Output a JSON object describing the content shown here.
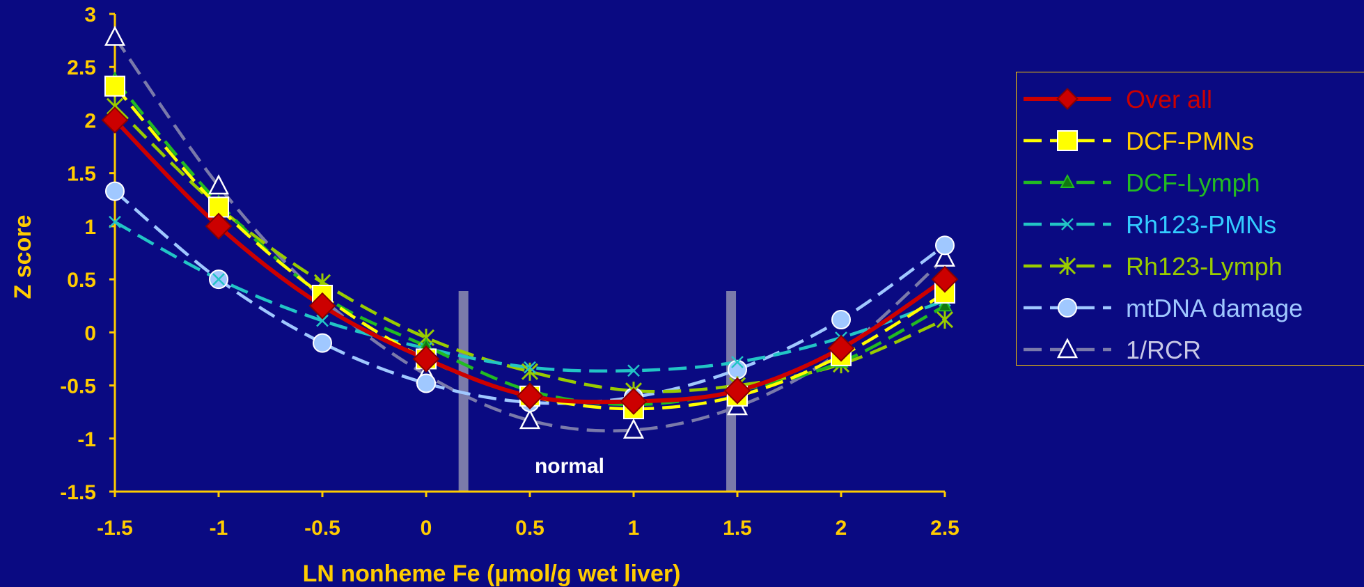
{
  "chart_data": {
    "type": "line",
    "xlabel": "LN nonheme Fe (µmol/g wet liver)",
    "ylabel": "Z score",
    "xlim": [
      -1.5,
      2.5
    ],
    "ylim": [
      -1.5,
      3
    ],
    "x_ticks": [
      "-1.5",
      "-1",
      "-0.5",
      "0",
      "0.5",
      "1",
      "1.5",
      "2",
      "2.5"
    ],
    "y_ticks": [
      "3",
      "2.5",
      "2",
      "1.5",
      "1",
      "0.5",
      "0",
      "-0.5",
      "-1",
      "-1.5"
    ],
    "x": [
      -1.5,
      -1,
      -0.5,
      0,
      0.5,
      1,
      1.5,
      2,
      2.5
    ],
    "region_label": "normal",
    "region_bounds": [
      0.18,
      1.47
    ],
    "legend_position": "right",
    "series": [
      {
        "name": "Over all",
        "color": "#cc0000",
        "label_color": "#cc0000",
        "marker": "diamond",
        "dash": "solid",
        "values": [
          2.0,
          1.0,
          0.25,
          -0.25,
          -0.6,
          -0.65,
          -0.55,
          -0.15,
          0.5
        ]
      },
      {
        "name": "DCF-PMNs",
        "color": "#ffff00",
        "label_color": "#ffcc00",
        "marker": "square",
        "dash": "dashed",
        "values": [
          2.32,
          1.18,
          0.35,
          -0.25,
          -0.6,
          -0.72,
          -0.6,
          -0.22,
          0.37
        ]
      },
      {
        "name": "DCF-Lymph",
        "color": "#22bb22",
        "label_color": "#22bb22",
        "marker": "triangle-filled",
        "dash": "dashed",
        "values": [
          2.38,
          1.22,
          0.35,
          -0.13,
          -0.55,
          -0.68,
          -0.55,
          -0.28,
          0.25
        ]
      },
      {
        "name": "Rh123-PMNs",
        "color": "#22c5c5",
        "label_color": "#33ccff",
        "marker": "x",
        "dash": "dashed",
        "values": [
          1.04,
          0.5,
          0.11,
          -0.15,
          -0.33,
          -0.36,
          -0.28,
          -0.05,
          0.3
        ]
      },
      {
        "name": "Rh123-Lymph",
        "color": "#99cc00",
        "label_color": "#99cc00",
        "marker": "star",
        "dash": "dashed",
        "values": [
          2.13,
          1.18,
          0.47,
          -0.05,
          -0.37,
          -0.55,
          -0.5,
          -0.3,
          0.12
        ]
      },
      {
        "name": "mtDNA damage",
        "color": "#a0c8ff",
        "label_color": "#a0c8ff",
        "marker": "circle",
        "dash": "dashed",
        "values": [
          1.33,
          0.5,
          -0.1,
          -0.48,
          -0.66,
          -0.61,
          -0.35,
          0.12,
          0.82
        ]
      },
      {
        "name": "1/RCR",
        "color": "#7a7aaa",
        "label_color": "#c8c8e6",
        "marker": "triangle-open",
        "dash": "dashed",
        "values": [
          2.78,
          1.38,
          0.32,
          -0.4,
          -0.83,
          -0.92,
          -0.7,
          -0.18,
          0.7
        ]
      }
    ]
  }
}
